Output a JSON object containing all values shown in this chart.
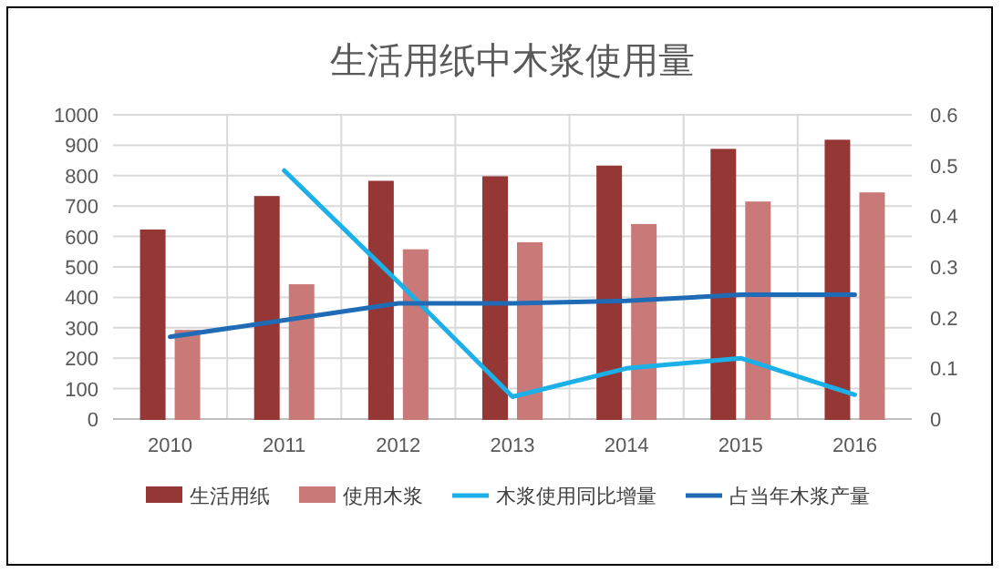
{
  "chart_data": {
    "type": "bar",
    "title": "生活用纸中木浆使用量",
    "categories": [
      "2010",
      "2011",
      "2012",
      "2013",
      "2014",
      "2015",
      "2016"
    ],
    "series": [
      {
        "name": "生活用纸",
        "color": "#953735",
        "values": [
          620,
          730,
          780,
          795,
          830,
          885,
          915
        ]
      },
      {
        "name": "使用木浆",
        "color": "#c97a78",
        "values": [
          290,
          440,
          555,
          578,
          638,
          712,
          742
        ]
      },
      {
        "name": "木浆使用同比增量",
        "type": "line",
        "axis": "y2",
        "color": "#1cb0e8",
        "values": [
          null,
          0.49,
          0.27,
          0.044,
          0.1,
          0.12,
          0.048
        ]
      },
      {
        "name": "占当年木浆产量",
        "type": "line",
        "axis": "y2",
        "color": "#1f6bb5",
        "values": [
          0.162,
          0.195,
          0.228,
          0.228,
          0.233,
          0.245,
          0.245
        ]
      }
    ],
    "ylim": [
      0,
      1000
    ],
    "yticks": [
      0,
      100,
      200,
      300,
      400,
      500,
      600,
      700,
      800,
      900,
      1000
    ],
    "y2lim": [
      0,
      0.6
    ],
    "y2ticks": [
      0,
      0.1,
      0.2,
      0.3,
      0.4,
      0.5,
      0.6
    ],
    "grid": true,
    "legend": "bottom"
  }
}
